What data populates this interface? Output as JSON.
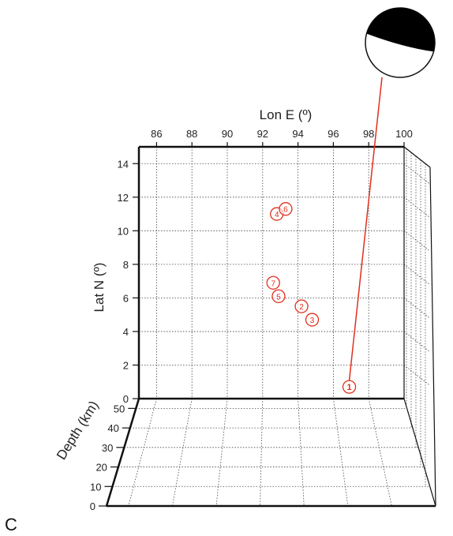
{
  "chart_data": {
    "type": "scatter",
    "title": "",
    "panel_label": "C",
    "xlabel": "Lon E (º)",
    "ylabel": "Lat N (º)",
    "zlabel": "Depth (km)",
    "xlim": [
      85,
      100
    ],
    "ylim": [
      0,
      15
    ],
    "zlim": [
      0,
      55
    ],
    "x_ticks": [
      86,
      88,
      90,
      92,
      94,
      96,
      98,
      100
    ],
    "y_ticks": [
      0,
      2,
      4,
      6,
      8,
      10,
      12,
      14
    ],
    "z_ticks": [
      0,
      10,
      20,
      30,
      40,
      50
    ],
    "grid": true,
    "grid_style": "dotted",
    "marker_color": "#e0301e",
    "events": [
      {
        "label": "1",
        "lon": 96.9,
        "lat": 0.7,
        "primary": true
      },
      {
        "label": "2",
        "lon": 94.2,
        "lat": 5.5
      },
      {
        "label": "3",
        "lon": 94.8,
        "lat": 4.7
      },
      {
        "label": "4",
        "lon": 92.8,
        "lat": 11.0
      },
      {
        "label": "5",
        "lon": 92.9,
        "lat": 6.1
      },
      {
        "label": "6",
        "lon": 93.3,
        "lat": 11.3
      },
      {
        "label": "7",
        "lon": 92.6,
        "lat": 6.9
      }
    ],
    "focal_mechanism": {
      "event": "1",
      "description": "beach ball",
      "fill": "#000000"
    }
  }
}
